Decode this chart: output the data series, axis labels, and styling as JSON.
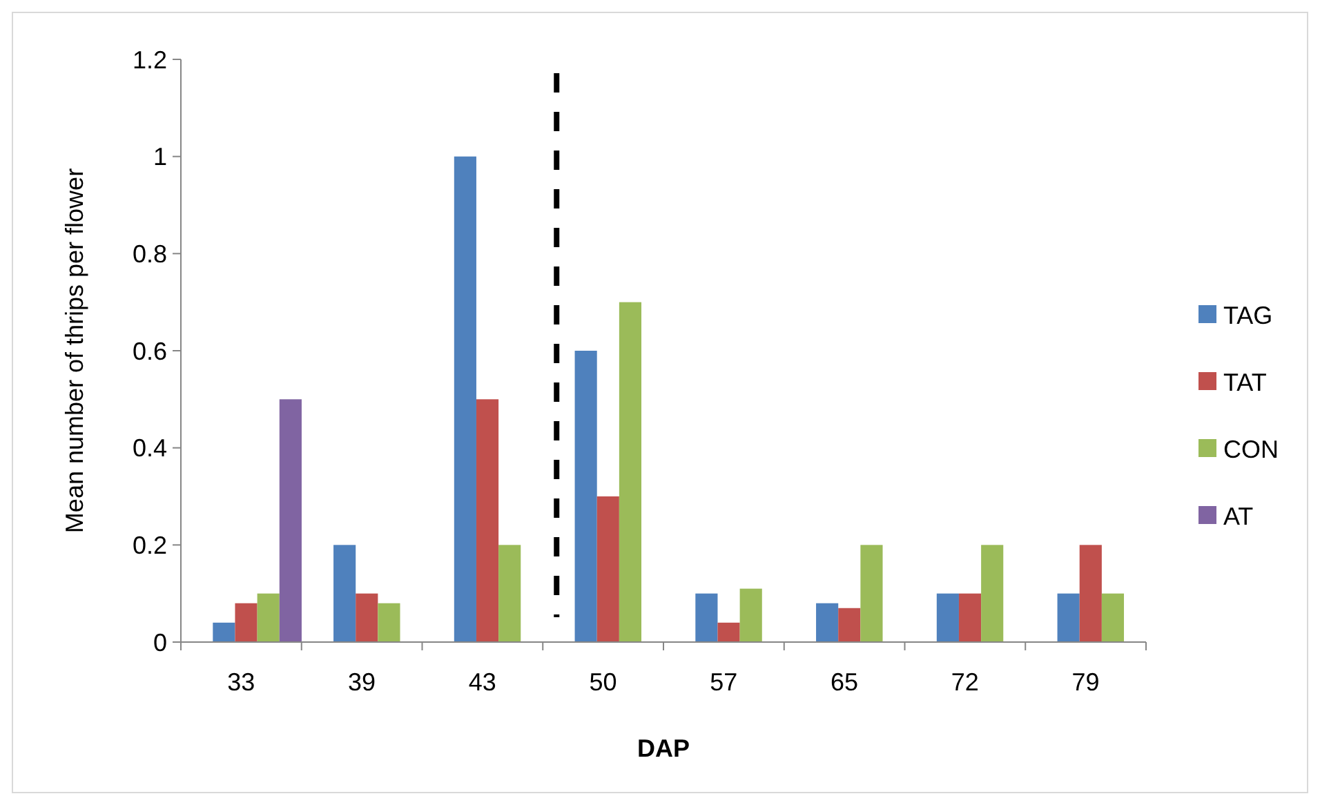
{
  "chart_data": {
    "type": "bar",
    "xlabel": "DAP",
    "ylabel": "Mean number of thrips per flower",
    "categories": [
      "33",
      "39",
      "43",
      "50",
      "57",
      "65",
      "72",
      "79"
    ],
    "series": [
      {
        "name": "TAG",
        "color": "#4f81bd",
        "values": [
          0.04,
          0.2,
          1.0,
          0.6,
          0.1,
          0.08,
          0.1,
          0.1
        ]
      },
      {
        "name": "TAT",
        "color": "#c0504d",
        "values": [
          0.08,
          0.1,
          0.5,
          0.3,
          0.04,
          0.07,
          0.1,
          0.2
        ]
      },
      {
        "name": "CON",
        "color": "#9bbb59",
        "values": [
          0.1,
          0.08,
          0.2,
          0.7,
          0.11,
          0.2,
          0.2,
          0.1
        ]
      },
      {
        "name": "AT",
        "color": "#8064a2",
        "values": [
          0.5,
          null,
          null,
          null,
          null,
          null,
          null,
          null
        ]
      }
    ],
    "ylim": [
      0,
      1.2
    ],
    "yticks": [
      0,
      {
        "value": 0.2,
        "label": "0.2"
      },
      {
        "value": 0.4,
        "label": "0.4"
      },
      {
        "value": 0.6,
        "label": "0.6"
      },
      {
        "value": 0.8,
        "label": "0.8"
      },
      1,
      {
        "value": 1.2,
        "label": "1.2"
      }
    ],
    "ref_lines": [
      {
        "axis": "x",
        "value": "50",
        "color": "#000000",
        "line_style": "dashed"
      }
    ],
    "grid": false,
    "legend": "right"
  }
}
